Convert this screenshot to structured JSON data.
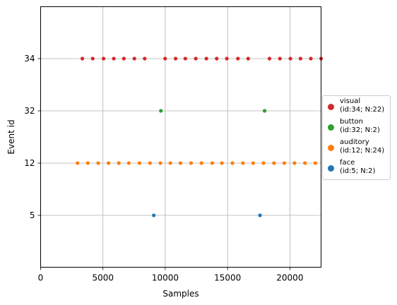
{
  "chart_data": {
    "type": "scatter",
    "xlabel": "Samples",
    "ylabel": "Event id",
    "xlim": [
      0,
      22500
    ],
    "x_ticks": [
      0,
      5000,
      10000,
      15000,
      20000
    ],
    "x_tick_labels": [
      "0",
      "5000",
      "10000",
      "15000",
      "20000"
    ],
    "y_categories": [
      "5",
      "12",
      "32",
      "34"
    ],
    "grid": true,
    "legend_position": "right",
    "series": [
      {
        "name": "visual\n(id:34; N:22)",
        "category": "34",
        "color": "#d62728",
        "x": [
          3350,
          4180,
          5050,
          5870,
          6680,
          7520,
          8350,
          9990,
          10830,
          11610,
          12450,
          13300,
          14130,
          14940,
          15830,
          16650,
          18360,
          19200,
          20040,
          20850,
          21680,
          22500
        ]
      },
      {
        "name": "button\n(id:32; N:2)",
        "category": "32",
        "color": "#2ca02c",
        "x": [
          9650,
          17970
        ]
      },
      {
        "name": "auditory\n(id:12; N:24)",
        "category": "12",
        "color": "#ff7f0e",
        "x": [
          2960,
          3790,
          4620,
          5450,
          6270,
          7080,
          7930,
          8780,
          9610,
          10410,
          11220,
          12070,
          12910,
          13770,
          14540,
          15390,
          16230,
          17050,
          17880,
          18720,
          19550,
          20370,
          21210,
          22040
        ]
      },
      {
        "name": "face\n(id:5; N:2)",
        "category": "5",
        "color": "#1f77b4",
        "x": [
          9080,
          17600
        ]
      }
    ]
  }
}
